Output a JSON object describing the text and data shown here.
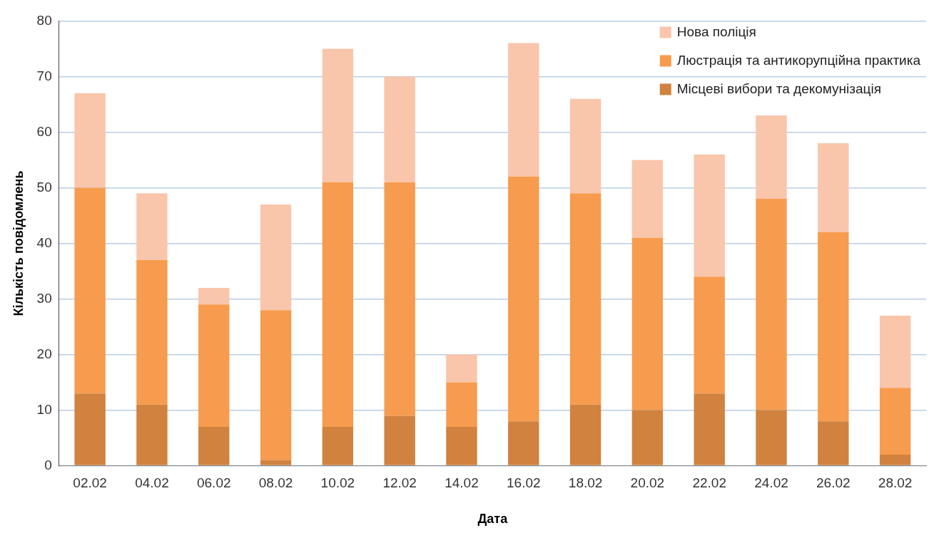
{
  "chart_data": {
    "type": "bar",
    "stacked": true,
    "xlabel": "Дата",
    "ylabel": "Кількість повідомлень",
    "categories": [
      "02.02",
      "04.02",
      "06.02",
      "08.02",
      "10.02",
      "12.02",
      "14.02",
      "16.02",
      "18.02",
      "20.02",
      "22.02",
      "24.02",
      "26.02",
      "28.02"
    ],
    "series": [
      {
        "name": "Місцеві вибори та декомунізація",
        "color": "#d0823e",
        "values": [
          13,
          11,
          7,
          1,
          7,
          9,
          7,
          8,
          11,
          10,
          13,
          10,
          8,
          2
        ]
      },
      {
        "name": "Люстрація та антикорупційна практика",
        "color": "#f79b4e",
        "values": [
          37,
          26,
          22,
          27,
          44,
          42,
          8,
          44,
          38,
          31,
          21,
          38,
          34,
          12
        ]
      },
      {
        "name": "Нова поліція",
        "color": "#f9c5ab",
        "values": [
          17,
          12,
          3,
          19,
          24,
          19,
          5,
          24,
          17,
          14,
          22,
          15,
          16,
          13
        ]
      }
    ],
    "ylim": [
      0,
      80
    ],
    "yticks": [
      0,
      10,
      20,
      30,
      40,
      50,
      60,
      70,
      80
    ],
    "grid": "y",
    "legend": "top right"
  }
}
